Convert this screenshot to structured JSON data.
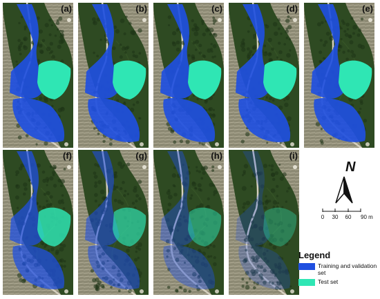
{
  "panels": [
    {
      "label": "(a)",
      "variant": 0
    },
    {
      "label": "(b)",
      "variant": 1
    },
    {
      "label": "(c)",
      "variant": 2
    },
    {
      "label": "(d)",
      "variant": 3
    },
    {
      "label": "(e)",
      "variant": 4
    },
    {
      "label": "(f)",
      "variant": 5
    },
    {
      "label": "(g)",
      "variant": 6
    },
    {
      "label": "(h)",
      "variant": 7
    },
    {
      "label": "(i)",
      "variant": 8
    }
  ],
  "legend": {
    "title": "Legend",
    "items": [
      {
        "label": "Training and validation set",
        "color": "#1f4fe0"
      },
      {
        "label": "Test set",
        "color": "#2fe6b4"
      }
    ]
  },
  "scale": {
    "ticks": [
      "0",
      "30",
      "60",
      "90 m"
    ]
  },
  "north": {
    "letter": "N"
  },
  "colors": {
    "training": "#1f4fe0",
    "test": "#2fe6b4",
    "forest": "#2e4a22",
    "terraces": "#9a957e",
    "road": "#d6d0c0"
  }
}
